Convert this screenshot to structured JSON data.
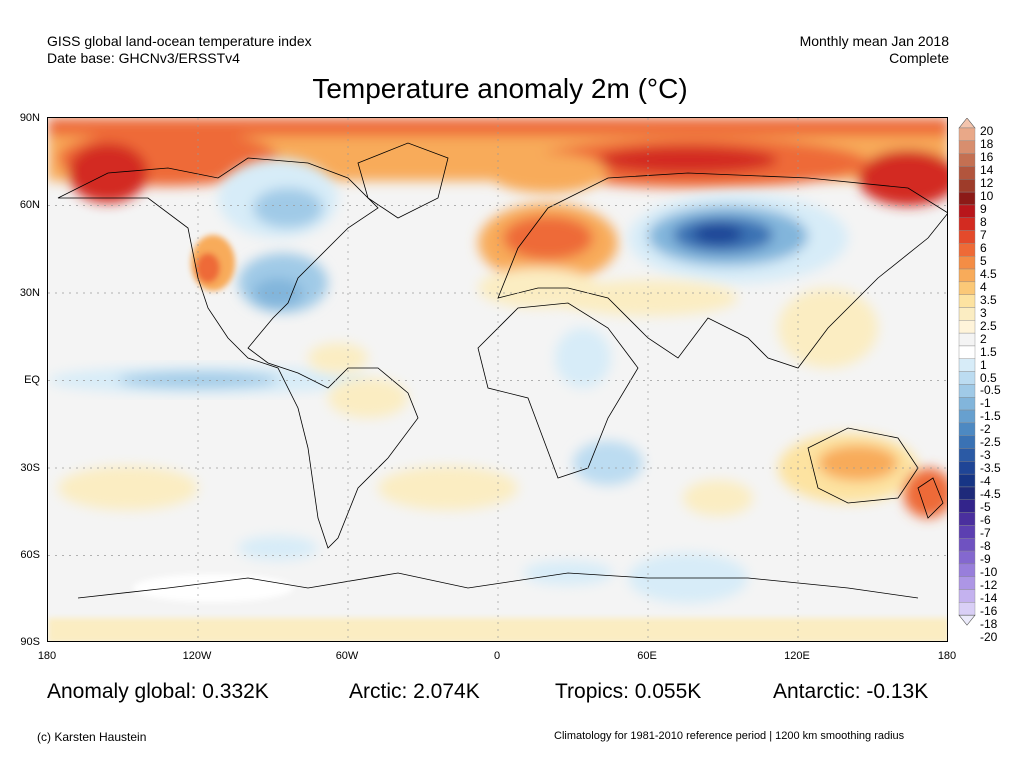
{
  "header": {
    "left_line1": "GISS global land-ocean temperature index",
    "left_line2": "Date base: GHCNv3/ERSSTv4",
    "right_line1": "Monthly mean Jan 2018",
    "right_line2": "Complete"
  },
  "title": "Temperature anomaly 2m (°C)",
  "axes": {
    "lat_labels": [
      "90N",
      "60N",
      "30N",
      "EQ",
      "30S",
      "60S",
      "90S"
    ],
    "lon_labels": [
      "180",
      "120W",
      "60W",
      "0",
      "60E",
      "120E",
      "180"
    ]
  },
  "colorbar": {
    "labels": [
      "20",
      "18",
      "16",
      "14",
      "12",
      "10",
      "9",
      "8",
      "7",
      "6",
      "5",
      "4.5",
      "4",
      "3.5",
      "3",
      "2.5",
      "2",
      "1.5",
      "1",
      "0.5",
      "-0.5",
      "-1",
      "-1.5",
      "-2",
      "-2.5",
      "-3",
      "-3.5",
      "-4",
      "-4.5",
      "-5",
      "-6",
      "-7",
      "-8",
      "-9",
      "-10",
      "-12",
      "-14",
      "-16",
      "-18",
      "-20"
    ],
    "colors": [
      "#f3c4ad",
      "#e9a888",
      "#d88e6e",
      "#c47052",
      "#b2553d",
      "#9e3c2a",
      "#8c1a17",
      "#b8161b",
      "#d32b21",
      "#e44a2b",
      "#ee6a37",
      "#f48d45",
      "#f8ab5a",
      "#fbc877",
      "#fde3a1",
      "#fbedc2",
      "#fff4da",
      "#f4f4f4",
      "#ffffff",
      "#d7ecf8",
      "#bcdcf1",
      "#a0cae7",
      "#82b5db",
      "#67a0cf",
      "#4d89c2",
      "#3a72b4",
      "#2b5aa5",
      "#1f4596",
      "#173585",
      "#1e2a7a",
      "#33248b",
      "#4a2f9e",
      "#5c3fb1",
      "#6f52c1",
      "#8468cf",
      "#987edb",
      "#ad96e5",
      "#c4b2ef",
      "#d9cff6",
      "#ecebfb"
    ]
  },
  "stats": {
    "global": "Anomaly global: 0.332K",
    "arctic": "Arctic: 2.074K",
    "tropics": "Tropics: 0.055K",
    "antarctic": "Antarctic: -0.13K"
  },
  "footer": {
    "credit": "(c) Karsten Haustein",
    "note": "Climatology for 1981-2010 reference period | 1200 km smoothing radius"
  },
  "colors": {
    "ocean_base": "#f4f4f4",
    "warm_light": "#fbedc2",
    "warm_mid": "#f8ab5a",
    "warm_strong": "#ee6a37",
    "warm_hot": "#d32b21",
    "cool_light": "#d7ecf8",
    "cool_mid": "#82b5db",
    "cool_strong": "#2b5aa5"
  }
}
